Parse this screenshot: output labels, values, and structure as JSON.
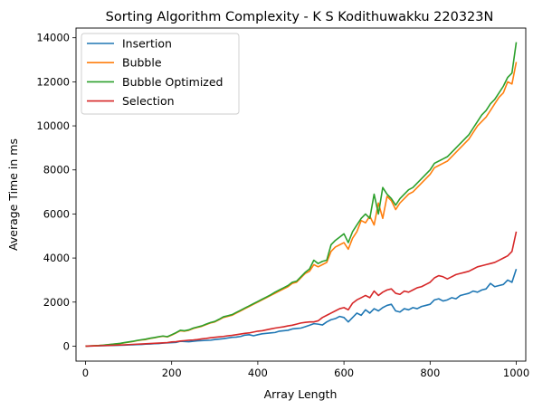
{
  "chart_data": {
    "type": "line",
    "title": "Sorting Algorithm Complexity - K S Kodithuwakku 220323N",
    "xlabel": "Array Length",
    "ylabel": "Average Time in ms",
    "xlim": [
      -22,
      1022
    ],
    "ylim": [
      -680,
      14440
    ],
    "xticks": [
      0,
      200,
      400,
      600,
      800,
      1000
    ],
    "yticks": [
      0,
      2000,
      4000,
      6000,
      8000,
      10000,
      12000,
      14000
    ],
    "grid": false,
    "legend": "top-left",
    "x": [
      0,
      10,
      20,
      30,
      40,
      50,
      60,
      70,
      80,
      90,
      100,
      110,
      120,
      130,
      140,
      150,
      160,
      170,
      180,
      190,
      200,
      210,
      220,
      230,
      240,
      250,
      260,
      270,
      280,
      290,
      300,
      310,
      320,
      330,
      340,
      350,
      360,
      370,
      380,
      390,
      400,
      410,
      420,
      430,
      440,
      450,
      460,
      470,
      480,
      490,
      500,
      510,
      520,
      530,
      540,
      550,
      560,
      570,
      580,
      590,
      600,
      610,
      620,
      630,
      640,
      650,
      660,
      670,
      680,
      690,
      700,
      710,
      720,
      730,
      740,
      750,
      760,
      770,
      780,
      790,
      800,
      810,
      820,
      830,
      840,
      850,
      860,
      870,
      880,
      890,
      900,
      910,
      920,
      930,
      940,
      950,
      960,
      970,
      980,
      990,
      1000
    ],
    "series": [
      {
        "name": "Insertion",
        "color": "#1f77b4",
        "values": [
          0,
          5,
          10,
          14,
          20,
          25,
          31,
          36,
          42,
          48,
          55,
          62,
          70,
          78,
          90,
          100,
          115,
          120,
          140,
          150,
          160,
          170,
          220,
          210,
          200,
          220,
          240,
          250,
          260,
          270,
          300,
          320,
          340,
          370,
          400,
          410,
          440,
          500,
          520,
          470,
          520,
          560,
          580,
          600,
          620,
          680,
          700,
          720,
          780,
          800,
          820,
          880,
          950,
          1020,
          1000,
          960,
          1100,
          1200,
          1250,
          1350,
          1300,
          1100,
          1300,
          1500,
          1400,
          1650,
          1500,
          1700,
          1600,
          1750,
          1850,
          1900,
          1600,
          1550,
          1700,
          1650,
          1750,
          1700,
          1800,
          1850,
          1900,
          2100,
          2150,
          2050,
          2100,
          2200,
          2150,
          2300,
          2350,
          2400,
          2500,
          2450,
          2550,
          2600,
          2850,
          2700,
          2750,
          2800,
          3000,
          2900,
          3500
        ]
      },
      {
        "name": "Bubble",
        "color": "#ff7f0e",
        "values": [
          0,
          8,
          15,
          25,
          40,
          60,
          80,
          100,
          120,
          150,
          180,
          210,
          250,
          280,
          300,
          350,
          380,
          420,
          450,
          420,
          500,
          600,
          700,
          680,
          720,
          800,
          850,
          900,
          980,
          1050,
          1100,
          1200,
          1300,
          1350,
          1400,
          1500,
          1600,
          1700,
          1800,
          1900,
          2000,
          2100,
          2200,
          2300,
          2400,
          2500,
          2600,
          2700,
          2850,
          2900,
          3100,
          3300,
          3400,
          3700,
          3600,
          3700,
          3800,
          4300,
          4500,
          4600,
          4700,
          4400,
          4900,
          5200,
          5700,
          5600,
          5900,
          5500,
          6500,
          5800,
          6800,
          6600,
          6200,
          6500,
          6700,
          6900,
          7000,
          7200,
          7400,
          7600,
          7800,
          8100,
          8200,
          8300,
          8400,
          8600,
          8800,
          9000,
          9200,
          9400,
          9700,
          10000,
          10200,
          10400,
          10700,
          11000,
          11300,
          11500,
          12000,
          11900,
          12900
        ]
      },
      {
        "name": "Bubble Optimized",
        "color": "#2ca02c",
        "values": [
          0,
          9,
          17,
          27,
          42,
          65,
          85,
          105,
          125,
          160,
          190,
          220,
          260,
          290,
          320,
          360,
          390,
          430,
          460,
          430,
          520,
          610,
          720,
          700,
          740,
          820,
          870,
          920,
          1000,
          1070,
          1120,
          1220,
          1330,
          1380,
          1430,
          1530,
          1630,
          1730,
          1830,
          1930,
          2030,
          2130,
          2230,
          2330,
          2450,
          2550,
          2650,
          2750,
          2900,
          2950,
          3150,
          3350,
          3500,
          3900,
          3750,
          3850,
          3900,
          4600,
          4800,
          4950,
          5100,
          4700,
          5200,
          5500,
          5800,
          6000,
          5800,
          6900,
          6000,
          7200,
          6900,
          6700,
          6400,
          6700,
          6900,
          7100,
          7200,
          7400,
          7600,
          7800,
          8000,
          8300,
          8400,
          8500,
          8600,
          8800,
          9000,
          9200,
          9400,
          9600,
          9900,
          10200,
          10500,
          10700,
          11000,
          11200,
          11500,
          11800,
          12200,
          12400,
          13800
        ]
      },
      {
        "name": "Selection",
        "color": "#d62728",
        "values": [
          0,
          6,
          12,
          18,
          24,
          30,
          38,
          44,
          52,
          60,
          70,
          80,
          90,
          100,
          110,
          120,
          130,
          140,
          150,
          160,
          190,
          200,
          230,
          250,
          270,
          280,
          300,
          330,
          350,
          380,
          400,
          420,
          440,
          470,
          490,
          520,
          550,
          580,
          600,
          640,
          680,
          700,
          740,
          780,
          820,
          850,
          880,
          920,
          950,
          1000,
          1050,
          1080,
          1100,
          1100,
          1150,
          1300,
          1400,
          1500,
          1600,
          1700,
          1750,
          1650,
          1950,
          2100,
          2200,
          2300,
          2200,
          2500,
          2300,
          2450,
          2550,
          2600,
          2400,
          2350,
          2500,
          2450,
          2550,
          2650,
          2700,
          2800,
          2900,
          3100,
          3200,
          3150,
          3050,
          3150,
          3250,
          3300,
          3350,
          3400,
          3500,
          3600,
          3650,
          3700,
          3750,
          3800,
          3900,
          4000,
          4100,
          4300,
          5200
        ]
      }
    ]
  }
}
